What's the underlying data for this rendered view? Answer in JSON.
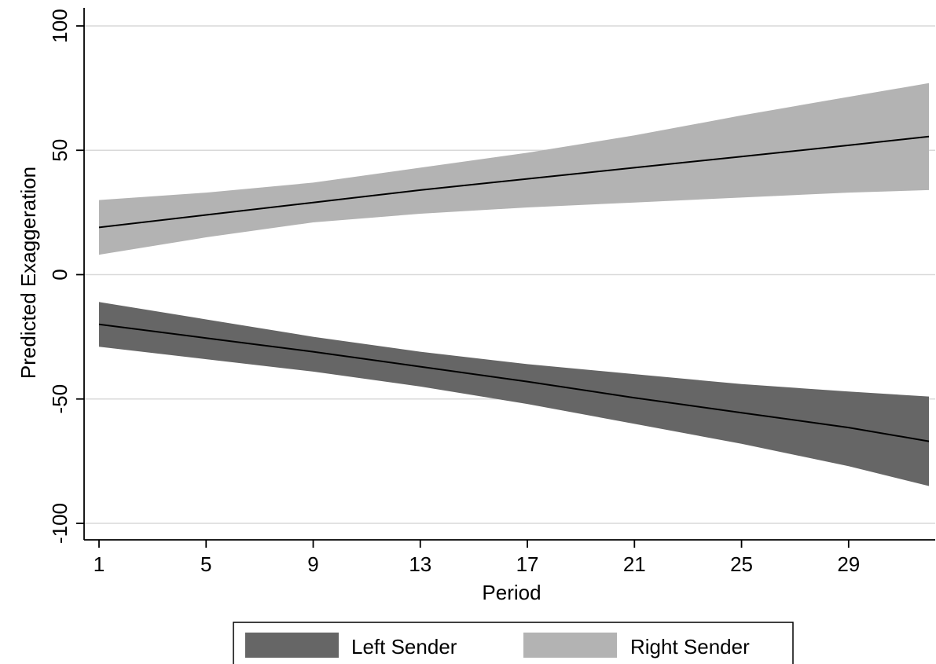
{
  "chart_data": {
    "type": "area",
    "xlabel": "Period",
    "ylabel": "Predicted Exaggeration",
    "xlim": [
      1,
      32
    ],
    "ylim": [
      -100,
      100
    ],
    "x_ticks": [
      1,
      5,
      9,
      13,
      17,
      21,
      25,
      29
    ],
    "y_ticks": [
      -100,
      -50,
      0,
      50,
      100
    ],
    "grid": "horizontal",
    "legend_position": "bottom",
    "series": [
      {
        "name": "Left Sender",
        "color": "#666666",
        "line_color": "#000000",
        "x": [
          1,
          5,
          9,
          13,
          17,
          21,
          25,
          29,
          32
        ],
        "estimate": [
          -20,
          -25.5,
          -31,
          -37,
          -43,
          -49.5,
          -55.5,
          -61.5,
          -67
        ],
        "lower": [
          -29,
          -34,
          -39,
          -45,
          -52,
          -60,
          -68,
          -77,
          -85
        ],
        "upper": [
          -11,
          -18,
          -25,
          -31,
          -36,
          -40,
          -44,
          -47,
          -49
        ]
      },
      {
        "name": "Right Sender",
        "color": "#b3b3b3",
        "line_color": "#000000",
        "x": [
          1,
          5,
          9,
          13,
          17,
          21,
          25,
          29,
          32
        ],
        "estimate": [
          19,
          24,
          29,
          34,
          38.5,
          43,
          47.5,
          52,
          55.5
        ],
        "lower": [
          8,
          15,
          21,
          24.5,
          27,
          29,
          31,
          33,
          34
        ],
        "upper": [
          30,
          33,
          37,
          43,
          49,
          56,
          64,
          71.5,
          77
        ]
      }
    ]
  }
}
